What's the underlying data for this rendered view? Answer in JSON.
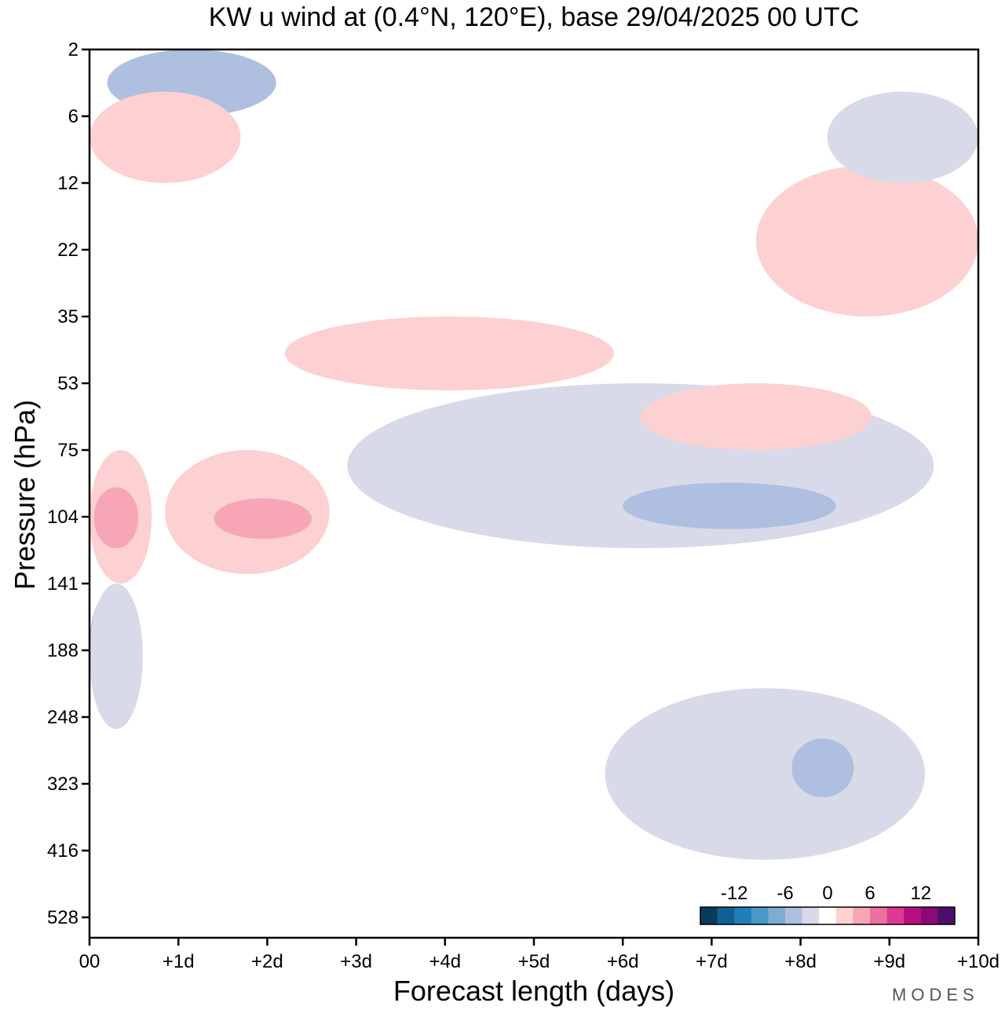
{
  "chart_data": {
    "type": "heatmap",
    "title": "KW u wind at (0.4°N, 120°E),  base 29/04/2025  00 UTC",
    "xlabel": "Forecast length (days)",
    "ylabel": "Pressure (hPa)",
    "x_ticks": [
      "00",
      "+1d",
      "+2d",
      "+3d",
      "+4d",
      "+5d",
      "+6d",
      "+7d",
      "+8d",
      "+9d",
      "+10d"
    ],
    "y_ticks": [
      "2",
      "6",
      "12",
      "22",
      "35",
      "53",
      "75",
      "104",
      "141",
      "188",
      "248",
      "323",
      "416",
      "528"
    ],
    "xlim": [
      0,
      10
    ],
    "colorbar": {
      "labels": [
        "-12",
        "-6",
        "0",
        "6",
        "12"
      ],
      "colors": [
        "#0b3a5c",
        "#135f93",
        "#1f7fb8",
        "#4a98c9",
        "#7eacd2",
        "#aebfdf",
        "#d9dae9",
        "#ffffff",
        "#fdd0d1",
        "#f7a6b6",
        "#ee6fa3",
        "#dc3a92",
        "#b80f80",
        "#8a0a78",
        "#4a0f6a"
      ]
    },
    "regions": [
      {
        "sign": "positive",
        "level": 1,
        "x": [
          0.0,
          0.7
        ],
        "y": [
          "75",
          "141"
        ]
      },
      {
        "sign": "positive",
        "level": 2,
        "x": [
          0.05,
          0.55
        ],
        "y": [
          "90",
          "120"
        ]
      },
      {
        "sign": "positive",
        "level": 1,
        "x": [
          0.85,
          2.7
        ],
        "y": [
          "75",
          "135"
        ]
      },
      {
        "sign": "positive",
        "level": 2,
        "x": [
          1.4,
          2.5
        ],
        "y": [
          "95",
          "115"
        ]
      },
      {
        "sign": "negative",
        "level": 2,
        "x": [
          0.0,
          0.35
        ],
        "y": [
          "150",
          "230"
        ]
      },
      {
        "sign": "negative",
        "level": 1,
        "x": [
          0.0,
          0.6
        ],
        "y": [
          "141",
          "260"
        ]
      },
      {
        "sign": "negative",
        "level": 1,
        "x": [
          2.9,
          9.5
        ],
        "y": [
          "53",
          "120"
        ]
      },
      {
        "sign": "negative",
        "level": 2,
        "x": [
          6.0,
          8.4
        ],
        "y": [
          "88",
          "110"
        ]
      },
      {
        "sign": "positive",
        "level": 1,
        "x": [
          2.2,
          5.9
        ],
        "y": [
          "35",
          "55"
        ]
      },
      {
        "sign": "negative",
        "level": 1,
        "x": [
          5.8,
          9.4
        ],
        "y": [
          "220",
          "430"
        ]
      },
      {
        "sign": "negative",
        "level": 2,
        "x": [
          7.9,
          8.6
        ],
        "y": [
          "270",
          "340"
        ]
      },
      {
        "sign": "negative",
        "level": 2,
        "x": [
          0.2,
          2.1
        ],
        "y": [
          "2",
          "6"
        ]
      },
      {
        "sign": "positive",
        "level": 1,
        "x": [
          0.0,
          1.7
        ],
        "y": [
          "4",
          "12"
        ]
      },
      {
        "sign": "positive",
        "level": 1,
        "x": [
          7.5,
          10.0
        ],
        "y": [
          "10",
          "35"
        ]
      },
      {
        "sign": "positive",
        "level": 1,
        "x": [
          6.2,
          8.8
        ],
        "y": [
          "53",
          "75"
        ]
      },
      {
        "sign": "negative",
        "level": 1,
        "x": [
          8.3,
          10.0
        ],
        "y": [
          "4",
          "12"
        ]
      }
    ]
  },
  "brand": "MODES"
}
